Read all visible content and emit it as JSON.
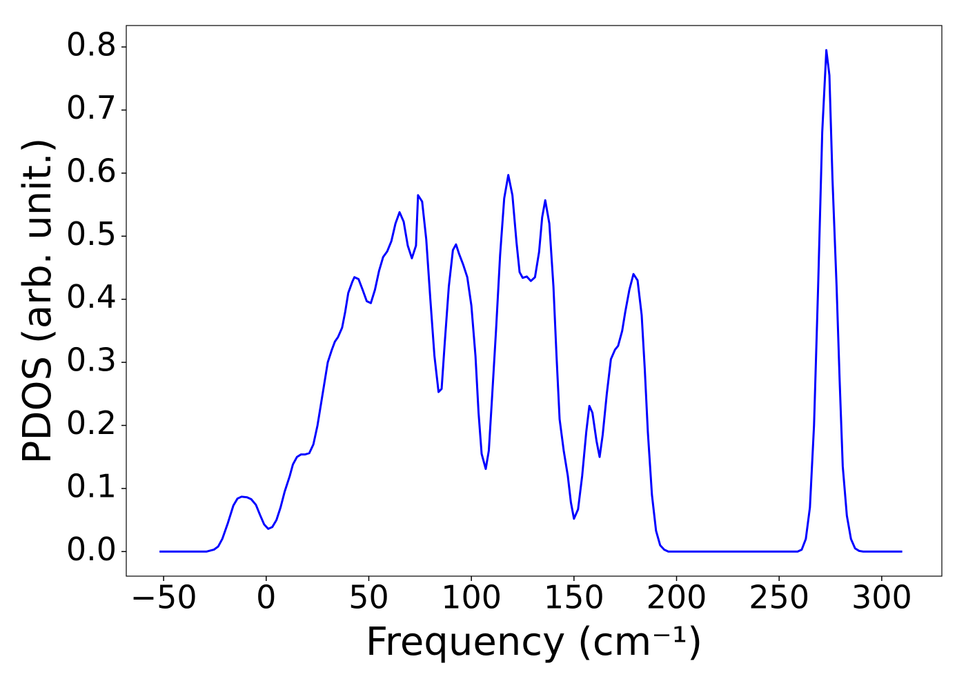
{
  "chart_data": {
    "type": "line",
    "xlabel": "Frequency (cm⁻¹)",
    "ylabel": "PDOS (arb. unit.)",
    "x": [
      -52,
      -29,
      -25.5,
      -23.4,
      -21.4,
      -18.7,
      -16,
      -14,
      -12,
      -9.3,
      -7.3,
      -5,
      -3,
      -1,
      1,
      3,
      5,
      7,
      9,
      11.5,
      13,
      15,
      17,
      19,
      21,
      23,
      25,
      27,
      28.5,
      30,
      32,
      33.5,
      35,
      37,
      38.5,
      40,
      42,
      43,
      45,
      47,
      49,
      51,
      53,
      55,
      57,
      59,
      61,
      63,
      65,
      67,
      69,
      71,
      73,
      74,
      76,
      78,
      80,
      82,
      84,
      85.5,
      87,
      89,
      91,
      92.5,
      94,
      96,
      98,
      100,
      102,
      103.5,
      105,
      107,
      108.5,
      110,
      112,
      114,
      116,
      118,
      120,
      122,
      123.5,
      125,
      127,
      129,
      131,
      133,
      134.5,
      136,
      138,
      140,
      141.5,
      143,
      145,
      147,
      148.5,
      150,
      152,
      154,
      156,
      157.5,
      159,
      161,
      162.5,
      164,
      166,
      168,
      170,
      171.5,
      173.5,
      175,
      177,
      179,
      181,
      183,
      184.5,
      186,
      188,
      190,
      192,
      194,
      196,
      259,
      261,
      263,
      265,
      267,
      269,
      271,
      273,
      274.5,
      276,
      278,
      279.5,
      281,
      283,
      285,
      287,
      289,
      291,
      310
    ],
    "series": [
      {
        "color": "#0000ff",
        "values": [
          0,
          0,
          0.003,
          0.008,
          0.02,
          0.045,
          0.073,
          0.084,
          0.087,
          0.086,
          0.083,
          0.074,
          0.058,
          0.043,
          0.036,
          0.039,
          0.05,
          0.07,
          0.095,
          0.12,
          0.138,
          0.15,
          0.154,
          0.154,
          0.156,
          0.17,
          0.2,
          0.24,
          0.27,
          0.3,
          0.32,
          0.333,
          0.34,
          0.355,
          0.38,
          0.41,
          0.428,
          0.435,
          0.432,
          0.415,
          0.397,
          0.394,
          0.415,
          0.445,
          0.467,
          0.476,
          0.492,
          0.52,
          0.538,
          0.523,
          0.485,
          0.465,
          0.485,
          0.565,
          0.555,
          0.495,
          0.4,
          0.31,
          0.253,
          0.258,
          0.33,
          0.42,
          0.478,
          0.487,
          0.472,
          0.455,
          0.435,
          0.39,
          0.31,
          0.22,
          0.155,
          0.131,
          0.16,
          0.24,
          0.35,
          0.47,
          0.56,
          0.597,
          0.565,
          0.49,
          0.443,
          0.434,
          0.436,
          0.429,
          0.435,
          0.475,
          0.53,
          0.557,
          0.52,
          0.42,
          0.31,
          0.21,
          0.16,
          0.12,
          0.078,
          0.052,
          0.067,
          0.12,
          0.19,
          0.231,
          0.22,
          0.175,
          0.15,
          0.185,
          0.25,
          0.305,
          0.32,
          0.326,
          0.35,
          0.38,
          0.415,
          0.44,
          0.43,
          0.375,
          0.29,
          0.19,
          0.09,
          0.033,
          0.01,
          0.003,
          0,
          0,
          0.003,
          0.02,
          0.07,
          0.2,
          0.42,
          0.665,
          0.795,
          0.755,
          0.59,
          0.42,
          0.27,
          0.135,
          0.057,
          0.02,
          0.005,
          0.001,
          0,
          0
        ]
      }
    ],
    "xlim": [
      -68.2,
      329.3
    ],
    "ylim": [
      -0.039,
      0.834
    ],
    "xticks": [
      {
        "value": -50,
        "label": "−50"
      },
      0,
      50,
      100,
      150,
      200,
      250,
      300
    ],
    "yticks": [
      {
        "value": 0,
        "label": "0.0"
      },
      0.1,
      0.2,
      0.3,
      0.4,
      0.5,
      0.6,
      0.7,
      0.8
    ],
    "grid": false
  }
}
